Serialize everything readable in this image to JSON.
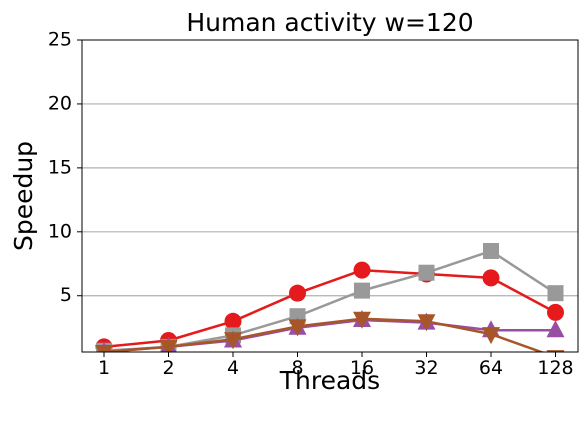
{
  "chart_data": {
    "type": "line",
    "title": "Human activity w=120",
    "xlabel": "Threads",
    "ylabel": "Speedup",
    "categories": [
      "1",
      "2",
      "4",
      "8",
      "16",
      "32",
      "64",
      "128"
    ],
    "ylim": [
      0.6,
      25
    ],
    "yticks": [
      5,
      10,
      15,
      20,
      25
    ],
    "grid": "y-major",
    "series": [
      {
        "marker": "circle",
        "color": "#e41a1c",
        "values": [
          1.0,
          1.5,
          3.0,
          5.2,
          7.0,
          6.7,
          6.4,
          3.7
        ]
      },
      {
        "marker": "square",
        "color": "#999999",
        "values": [
          0.7,
          1.0,
          1.9,
          3.4,
          5.4,
          6.8,
          8.5,
          5.2
        ]
      },
      {
        "marker": "triangle-up",
        "color": "#984ea3",
        "values": [
          0.6,
          1.0,
          1.5,
          2.5,
          3.1,
          2.9,
          2.3,
          2.3
        ]
      },
      {
        "marker": "triangle-down",
        "color": "#a65628",
        "values": [
          0.6,
          1.0,
          1.6,
          2.6,
          3.2,
          3.0,
          2.0,
          0.2
        ]
      }
    ]
  }
}
